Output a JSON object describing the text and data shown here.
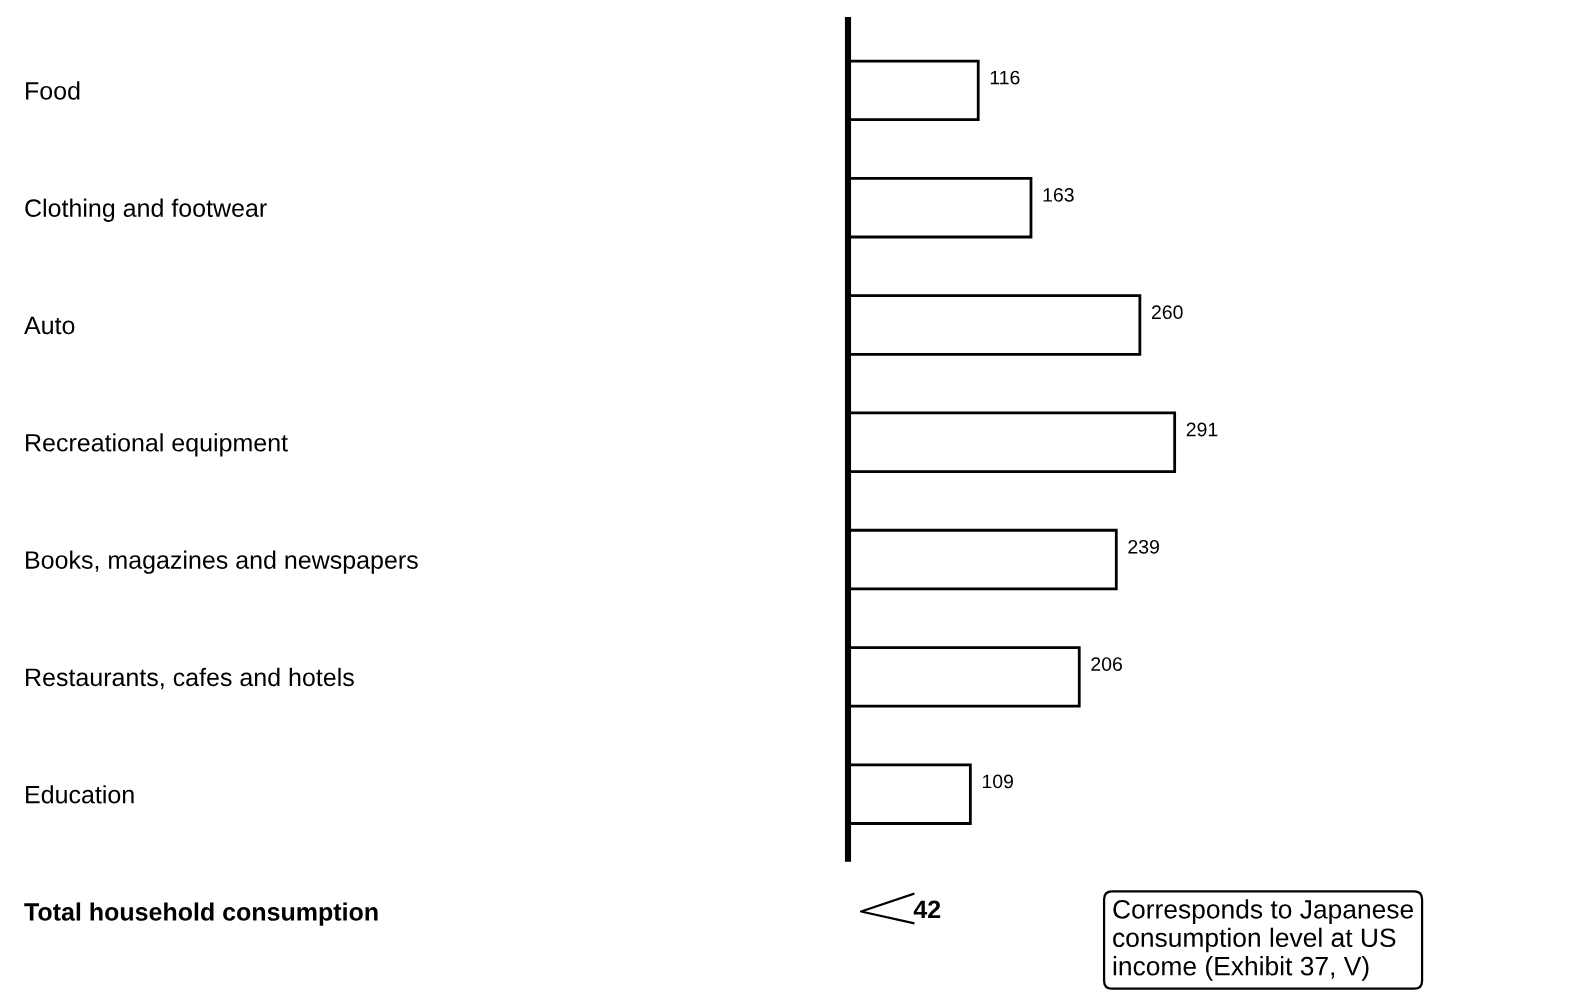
{
  "chart_data": {
    "type": "bar",
    "orientation": "horizontal",
    "categories": [
      "Food",
      "Clothing and footwear",
      "Auto",
      "Recreational equipment",
      "Books, magazines and newspapers",
      "Restaurants, cafes and hotels",
      "Education",
      "Total household consumption"
    ],
    "series": [
      {
        "color": "#ffffff",
        "values": [
          116,
          163,
          260,
          291,
          239,
          206,
          109,
          null
        ]
      }
    ],
    "data_labels": true,
    "grid": false,
    "legend": false,
    "annotations": [
      "42",
      "Corresponds to Japanese\nconsumption level at US\nincome (Exhibit 37, V)"
    ]
  }
}
